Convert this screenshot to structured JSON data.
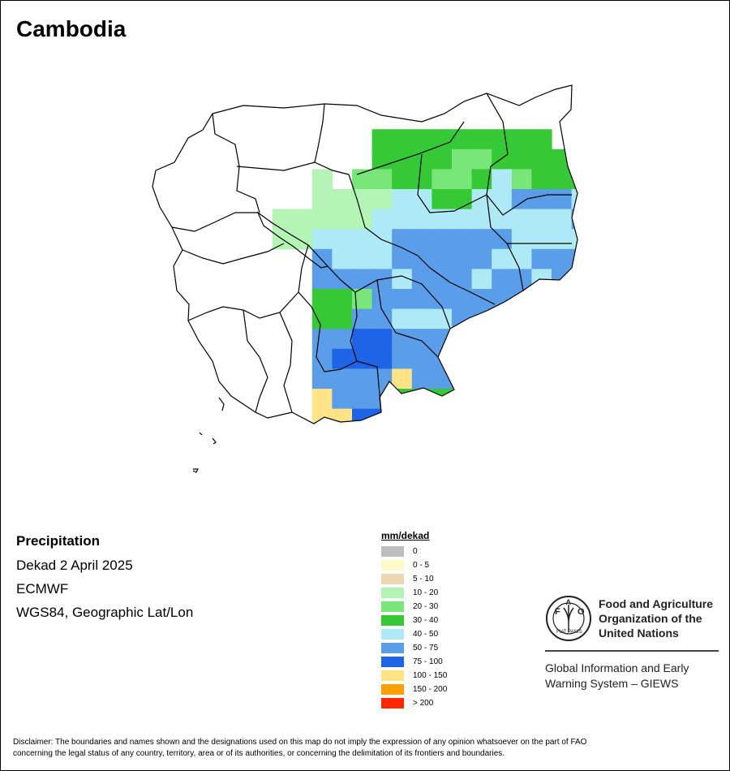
{
  "map": {
    "title": "Cambodia",
    "subject": "Precipitation",
    "period": "Dekad 2 April 2025",
    "source": "ECMWF",
    "projection": "WGS84, Geographic Lat/Lon",
    "legend_title": "mm/dekad",
    "legend": [
      {
        "label": "0",
        "color": "#BEBEBE"
      },
      {
        "label": "0 - 5",
        "color": "#FFFBC8"
      },
      {
        "label": "5 - 10",
        "color": "#EAD9B2"
      },
      {
        "label": "10 - 20",
        "color": "#B4F4B4"
      },
      {
        "label": "20 - 30",
        "color": "#78E678"
      },
      {
        "label": "30 - 40",
        "color": "#36C936"
      },
      {
        "label": "40 - 50",
        "color": "#AEEAF5"
      },
      {
        "label": "50 - 75",
        "color": "#5A9EEA"
      },
      {
        "label": "75 - 100",
        "color": "#1E64E6"
      },
      {
        "label": "100 - 150",
        "color": "#FFE384"
      },
      {
        "label": "150 - 200",
        "color": "#FFA000"
      },
      {
        "label": "> 200",
        "color": "#FF2800"
      }
    ]
  },
  "branding": {
    "org_line1": "Food and Agriculture",
    "org_line2": "Organization of the",
    "org_line3": "United Nations",
    "giews_line1": "Global Information and Early",
    "giews_line2": "Warning System – GIEWS",
    "emblem_text": "FAO",
    "emblem_motto": "FIAT PANIS"
  },
  "disclaimer": {
    "line1": "Disclaimer: The boundaries and names shown and the designations used on this map do not imply the expression of any opinion whatsoever on the part of FAO",
    "line2": "concerning the legal status of any country, territory, area or of its authorities, or concerning the delimitation of its frontiers and boundaries."
  }
}
